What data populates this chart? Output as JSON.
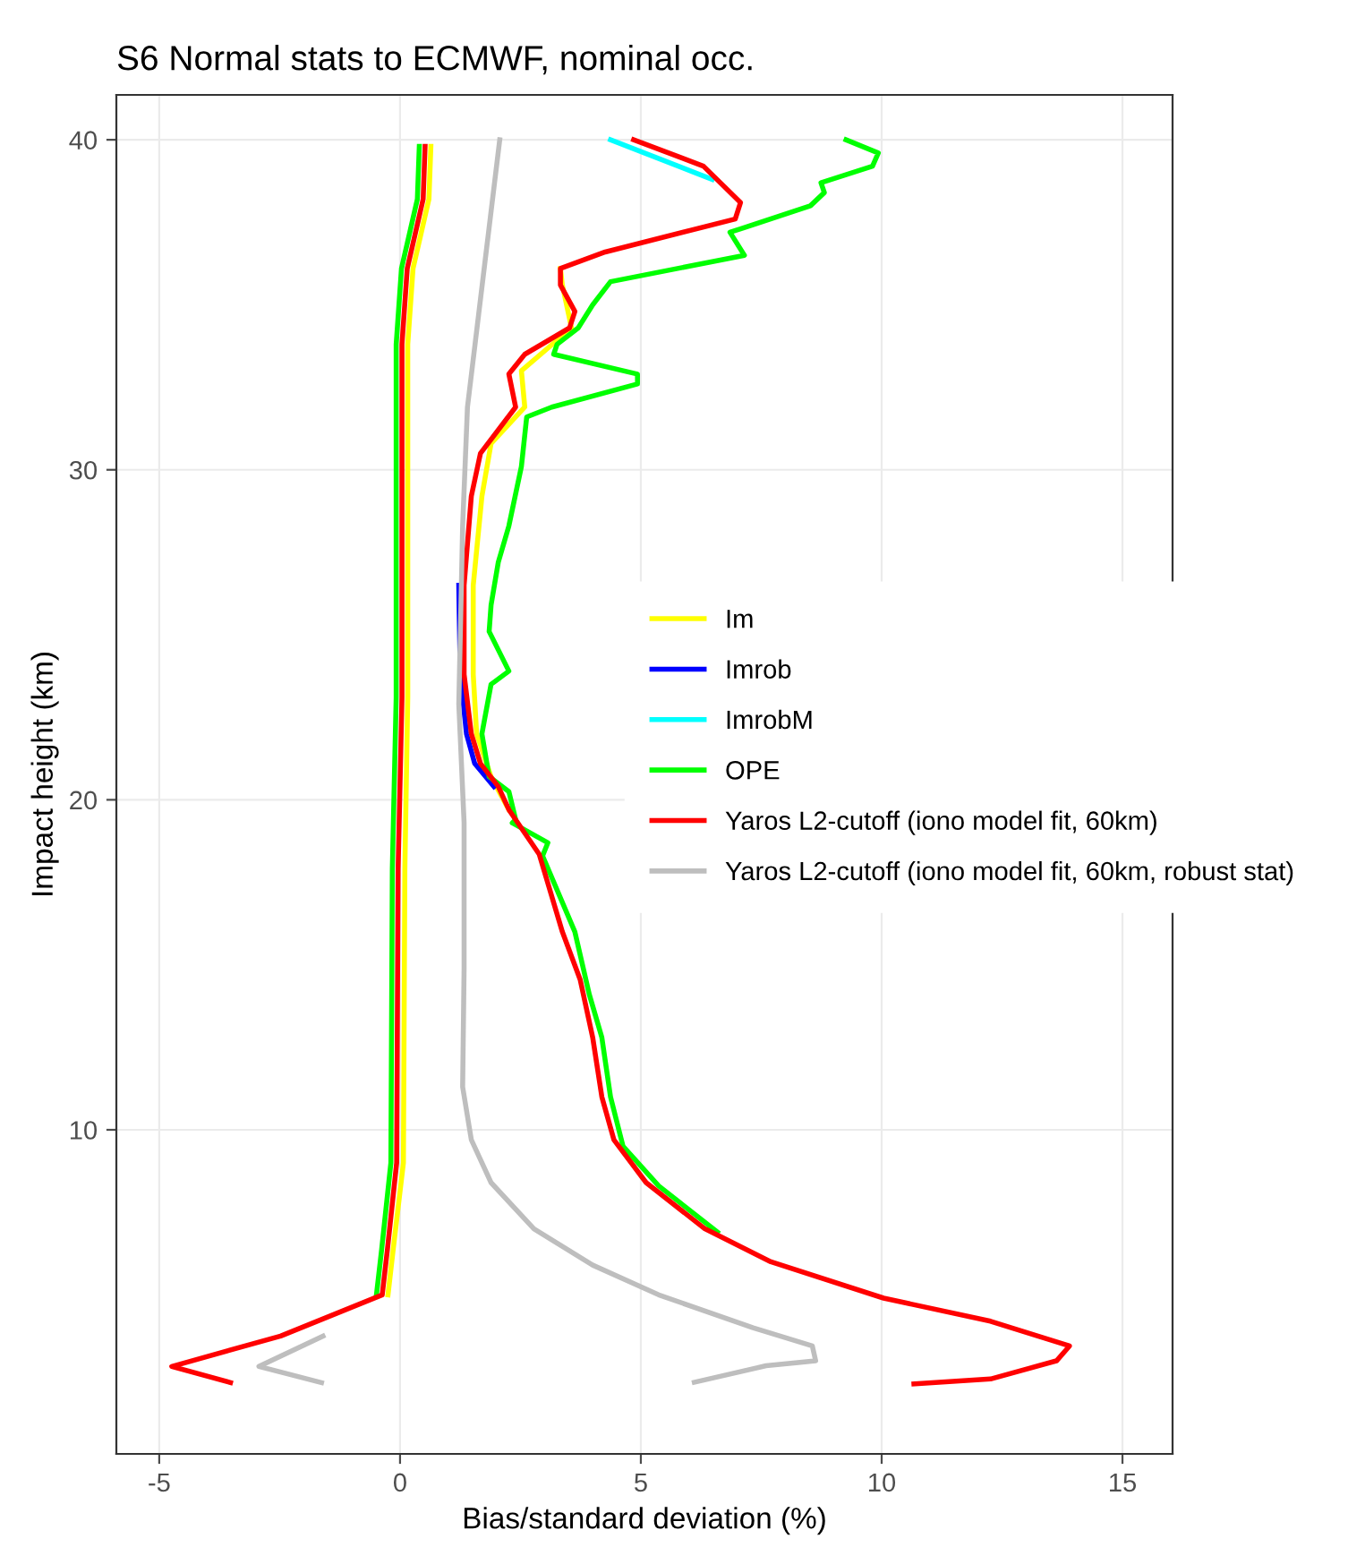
{
  "chart_data": {
    "type": "line",
    "title": "S6 Normal stats to ECMWF, nominal occ.",
    "xlabel": "Bias/standard deviation (%)",
    "ylabel": "Impact height (km)",
    "xlim": [
      -5.89,
      16.04
    ],
    "ylim": [
      0.18,
      41.36
    ],
    "xticks": [
      -5,
      0,
      5,
      10,
      15
    ],
    "yticks": [
      10,
      20,
      30,
      40
    ],
    "grid": true,
    "legend": "right",
    "marker": "none",
    "line_style": "solid",
    "series": [
      {
        "name": "Im",
        "color": "#ffff00",
        "x": [
          0.64,
          0.6,
          0.27,
          0.16,
          0.16,
          0.1,
          0.07,
          -0.14,
          -0.25,
          null,
          null,
          null
        ],
        "values": [
          39.8,
          38.2,
          36.1,
          33.8,
          23.1,
          17.9,
          9.0,
          6.4,
          5.0,
          null,
          null,
          null
        ]
      },
      {
        "color": "#ffff00",
        "x": [
          3.33,
          3.37,
          3.56,
          2.52,
          2.59,
          1.89,
          1.7,
          1.52,
          1.52,
          1.59,
          1.89,
          2.26
        ],
        "values": [
          36.1,
          35.6,
          34.3,
          33.0,
          31.9,
          30.8,
          29.2,
          26.5,
          23.8,
          22.0,
          20.7,
          19.7
        ]
      },
      {
        "name": "Imrob",
        "color": "#0000ff",
        "x": [
          1.22,
          1.25,
          1.38,
          1.55,
          1.95
        ],
        "values": [
          26.5,
          23.8,
          22.0,
          21.1,
          20.4
        ]
      },
      {
        "name": "ImrobM",
        "color": "#00ffff",
        "x": [
          4.37,
          6.48
        ],
        "values": [
          40,
          38.8
        ]
      },
      {
        "name": "OPE",
        "color": "#00ff00",
        "x": [
          0.4,
          0.36,
          0.03,
          -0.08,
          -0.08,
          -0.16,
          -0.19,
          -0.38,
          -0.49,
          null,
          null,
          null
        ],
        "values": [
          39.8,
          38.2,
          36.1,
          33.8,
          23.1,
          17.9,
          9.0,
          6.4,
          5.0,
          null,
          null,
          null
        ]
      },
      {
        "color": "#00ff00",
        "x": [
          9.26,
          9.93,
          9.81,
          8.74,
          8.81,
          8.52,
          7.07,
          6.85,
          7.15,
          4.37,
          4.0,
          3.7,
          3.26,
          3.19,
          4.93,
          4.93,
          3.15,
          2.63,
          2.52,
          2.26,
          2.04,
          1.89,
          1.85,
          2.26,
          1.89,
          1.7,
          1.85,
          2.26,
          2.4,
          2.33,
          3.07,
          2.96,
          3.63,
          3.93,
          4.19,
          4.37,
          4.63,
          5.37,
          6.59
        ],
        "values": [
          40,
          39.6,
          39.2,
          38.7,
          38.4,
          38.0,
          37.3,
          37.2,
          36.5,
          35.7,
          35.0,
          34.3,
          33.8,
          33.5,
          32.9,
          32.6,
          31.9,
          31.6,
          30.1,
          28.3,
          27.2,
          25.9,
          25.1,
          23.9,
          23.5,
          22.0,
          20.7,
          20.25,
          19.4,
          19.3,
          18.7,
          18.3,
          16.0,
          14.1,
          12.8,
          11.0,
          9.5,
          8.3,
          6.9
        ]
      },
      {
        "name": "Yaros L2-cutoff (iono model fit, 60km)",
        "color": "#ff0000",
        "x": [
          0.52,
          0.48,
          0.15,
          0.04,
          0.04,
          -0.04,
          -0.07,
          -0.26,
          -0.37,
          -2.48,
          -4.74,
          -3.52
        ],
        "values": [
          39.8,
          38.2,
          36.1,
          33.8,
          23.1,
          17.9,
          9.0,
          6.4,
          5.0,
          3.75,
          2.83,
          2.34
        ]
      },
      {
        "color": "#ff0000",
        "x": [
          4.85,
          6.3,
          7.07,
          6.96,
          4.26,
          3.33,
          3.33,
          3.63,
          3.52,
          2.59,
          2.26,
          2.4,
          1.67,
          1.48,
          1.33,
          1.33,
          1.48,
          1.67,
          2.04,
          2.26,
          2.89,
          3.37,
          3.74,
          4.0,
          4.19,
          4.44,
          5.11,
          6.33,
          7.7,
          10.04,
          12.26,
          13.9,
          13.63,
          12.26,
          10.67
        ],
        "values": [
          40,
          39.2,
          38.1,
          37.6,
          36.6,
          36.1,
          35.6,
          34.8,
          34.3,
          33.5,
          32.9,
          31.9,
          30.5,
          29.2,
          26.5,
          23.8,
          22.0,
          21.1,
          20.4,
          19.7,
          18.35,
          16.0,
          14.55,
          12.8,
          11.0,
          9.7,
          8.4,
          7.0,
          6.0,
          4.9,
          4.2,
          3.45,
          3.0,
          2.45,
          2.3
        ]
      },
      {
        "name": "Yaros L2-cutoff (iono model fit, 60km, robust stat)",
        "color": "#bebebe",
        "x": [
          -1.6,
          -2.93,
          -1.63
        ],
        "values": [
          3.75,
          2.83,
          2.34
        ]
      },
      {
        "color": "#bebebe",
        "x": [
          2.07,
          1.78,
          1.4,
          1.3,
          1.22,
          1.33,
          1.33,
          1.3,
          1.48,
          1.89,
          2.78,
          4.0,
          5.37,
          7.33,
          8.56,
          8.63,
          7.6,
          6.11
        ],
        "values": [
          40,
          36.5,
          31.9,
          28.3,
          22.9,
          19.3,
          14.9,
          11.3,
          9.7,
          8.4,
          7.0,
          5.9,
          5.0,
          4.0,
          3.45,
          3.0,
          2.85,
          2.35
        ]
      }
    ]
  }
}
